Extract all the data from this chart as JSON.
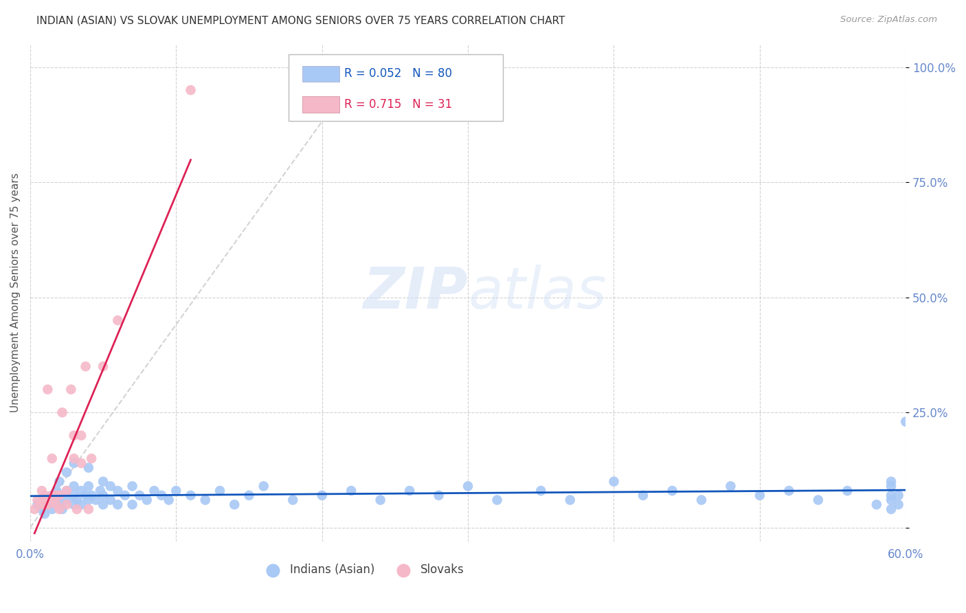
{
  "title": "INDIAN (ASIAN) VS SLOVAK UNEMPLOYMENT AMONG SENIORS OVER 75 YEARS CORRELATION CHART",
  "source": "Source: ZipAtlas.com",
  "ylabel": "Unemployment Among Seniors over 75 years",
  "xlim": [
    0.0,
    0.6
  ],
  "ylim": [
    -0.03,
    1.05
  ],
  "xticks": [
    0.0,
    0.1,
    0.2,
    0.3,
    0.4,
    0.5,
    0.6
  ],
  "xticklabels": [
    "0.0%",
    "",
    "",
    "",
    "",
    "",
    "60.0%"
  ],
  "yticks": [
    0.0,
    0.25,
    0.5,
    0.75,
    1.0
  ],
  "yticklabels": [
    "",
    "25.0%",
    "50.0%",
    "75.0%",
    "100.0%"
  ],
  "legend_r1": "R = 0.052",
  "legend_n1": "N = 80",
  "legend_r2": "R = 0.715",
  "legend_n2": "N = 31",
  "legend_label1": "Indians (Asian)",
  "legend_label2": "Slovaks",
  "color_indian": "#a8c8f5",
  "color_slovak": "#f5b8c8",
  "color_indian_line": "#1155bb",
  "color_slovak_line": "#dd2255",
  "color_trend_dash": "#cccccc",
  "watermark_zip": "ZIP",
  "watermark_atlas": "atlas",
  "title_color": "#333333",
  "axis_color": "#6688cc",
  "background_color": "#ffffff",
  "indian_x": [
    0.005,
    0.008,
    0.01,
    0.01,
    0.012,
    0.015,
    0.015,
    0.018,
    0.018,
    0.02,
    0.02,
    0.02,
    0.022,
    0.025,
    0.025,
    0.025,
    0.03,
    0.03,
    0.03,
    0.03,
    0.032,
    0.035,
    0.035,
    0.038,
    0.04,
    0.04,
    0.04,
    0.042,
    0.045,
    0.048,
    0.05,
    0.05,
    0.05,
    0.055,
    0.055,
    0.06,
    0.06,
    0.065,
    0.07,
    0.07,
    0.075,
    0.08,
    0.085,
    0.09,
    0.095,
    0.1,
    0.11,
    0.12,
    0.13,
    0.14,
    0.15,
    0.16,
    0.18,
    0.2,
    0.22,
    0.24,
    0.26,
    0.28,
    0.3,
    0.32,
    0.35,
    0.37,
    0.4,
    0.42,
    0.44,
    0.46,
    0.48,
    0.5,
    0.52,
    0.54,
    0.56,
    0.58,
    0.59,
    0.59,
    0.59,
    0.59,
    0.59,
    0.595,
    0.595,
    0.6
  ],
  "indian_y": [
    0.05,
    0.04,
    0.06,
    0.03,
    0.05,
    0.04,
    0.07,
    0.06,
    0.08,
    0.05,
    0.07,
    0.1,
    0.04,
    0.06,
    0.08,
    0.12,
    0.05,
    0.07,
    0.09,
    0.14,
    0.06,
    0.05,
    0.08,
    0.07,
    0.06,
    0.09,
    0.13,
    0.07,
    0.06,
    0.08,
    0.05,
    0.07,
    0.1,
    0.06,
    0.09,
    0.05,
    0.08,
    0.07,
    0.05,
    0.09,
    0.07,
    0.06,
    0.08,
    0.07,
    0.06,
    0.08,
    0.07,
    0.06,
    0.08,
    0.05,
    0.07,
    0.09,
    0.06,
    0.07,
    0.08,
    0.06,
    0.08,
    0.07,
    0.09,
    0.06,
    0.08,
    0.06,
    0.1,
    0.07,
    0.08,
    0.06,
    0.09,
    0.07,
    0.08,
    0.06,
    0.08,
    0.05,
    0.04,
    0.06,
    0.07,
    0.09,
    0.1,
    0.05,
    0.07,
    0.23
  ],
  "slovak_x": [
    0.003,
    0.005,
    0.007,
    0.008,
    0.009,
    0.01,
    0.01,
    0.012,
    0.012,
    0.015,
    0.015,
    0.015,
    0.018,
    0.018,
    0.02,
    0.02,
    0.022,
    0.025,
    0.025,
    0.028,
    0.03,
    0.03,
    0.032,
    0.035,
    0.035,
    0.038,
    0.04,
    0.042,
    0.05,
    0.06,
    0.11
  ],
  "slovak_y": [
    0.04,
    0.06,
    0.05,
    0.08,
    0.06,
    0.05,
    0.07,
    0.3,
    0.05,
    0.07,
    0.15,
    0.06,
    0.05,
    0.07,
    0.04,
    0.07,
    0.25,
    0.05,
    0.08,
    0.3,
    0.15,
    0.2,
    0.04,
    0.14,
    0.2,
    0.35,
    0.04,
    0.15,
    0.35,
    0.45,
    0.95
  ]
}
